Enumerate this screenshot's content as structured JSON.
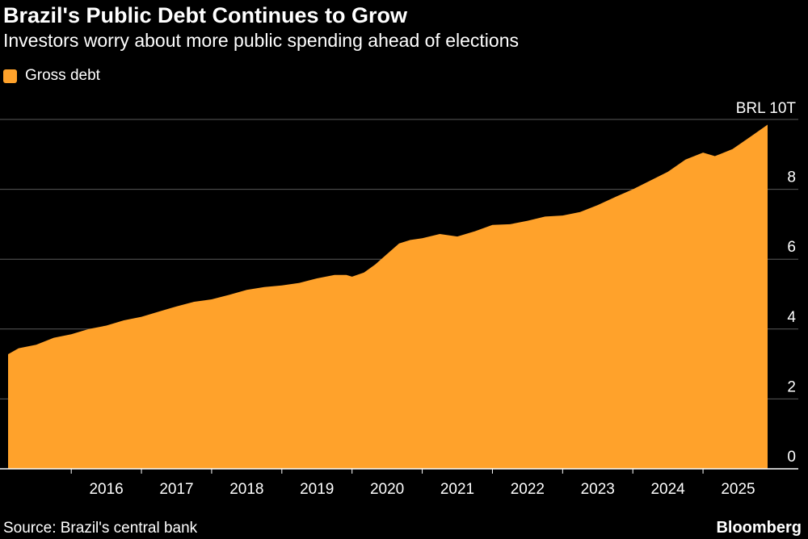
{
  "title": "Brazil's Public Debt Continues to Grow",
  "subtitle": "Investors worry about more public spending ahead of elections",
  "source": "Source: Brazil's central bank",
  "brand": "Bloomberg",
  "colors": {
    "background": "#000000",
    "series": "#FFA22B",
    "grid": "#5a5a5a",
    "text": "#ffffff"
  },
  "chart_data": {
    "type": "area",
    "title": "Brazil's Public Debt Continues to Grow",
    "subtitle": "Investors worry about more public spending ahead of elections",
    "legend": {
      "placement": "top-left",
      "entries": [
        "Gross debt"
      ]
    },
    "ylim": [
      0,
      10
    ],
    "y_ticks": [
      0,
      2,
      4,
      6,
      8,
      10
    ],
    "y_tick_labels": [
      "0",
      "2",
      "4",
      "6",
      "8",
      "BRL 10T"
    ],
    "x_tick_labels": [
      "2016",
      "2017",
      "2018",
      "2019",
      "2020",
      "2021",
      "2022",
      "2023",
      "2024",
      "2025"
    ],
    "x_range": [
      2015.1,
      2025.92
    ],
    "grid": "horizontal",
    "series": [
      {
        "name": "Gross debt",
        "x": [
          2015.1,
          2015.25,
          2015.5,
          2015.75,
          2016.0,
          2016.25,
          2016.5,
          2016.75,
          2017.0,
          2017.25,
          2017.5,
          2017.75,
          2018.0,
          2018.25,
          2018.5,
          2018.75,
          2019.0,
          2019.25,
          2019.5,
          2019.75,
          2019.92,
          2020.0,
          2020.17,
          2020.33,
          2020.5,
          2020.67,
          2020.83,
          2021.0,
          2021.25,
          2021.5,
          2021.75,
          2022.0,
          2022.25,
          2022.5,
          2022.75,
          2023.0,
          2023.25,
          2023.5,
          2023.75,
          2024.0,
          2024.25,
          2024.5,
          2024.75,
          2025.0,
          2025.17,
          2025.42,
          2025.67,
          2025.92
        ],
        "values": [
          3.28,
          3.45,
          3.55,
          3.75,
          3.85,
          4.0,
          4.1,
          4.25,
          4.35,
          4.5,
          4.65,
          4.78,
          4.85,
          4.98,
          5.12,
          5.2,
          5.25,
          5.32,
          5.45,
          5.55,
          5.55,
          5.5,
          5.62,
          5.85,
          6.15,
          6.45,
          6.55,
          6.6,
          6.72,
          6.65,
          6.8,
          6.98,
          7.0,
          7.1,
          7.22,
          7.25,
          7.35,
          7.55,
          7.78,
          8.0,
          8.25,
          8.5,
          8.85,
          9.05,
          8.95,
          9.15,
          9.5,
          9.85
        ]
      }
    ]
  }
}
